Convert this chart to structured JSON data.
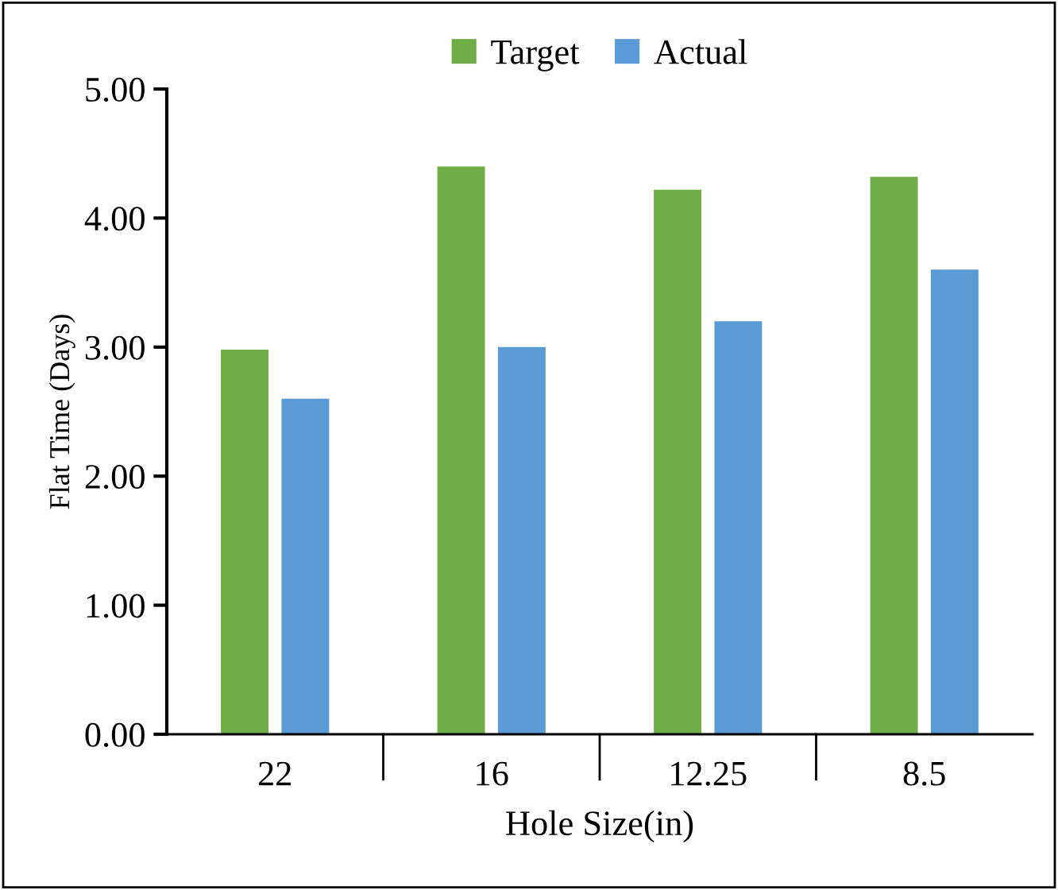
{
  "chart_data": {
    "type": "bar",
    "xlabel": "Hole Size(in)",
    "ylabel": "Flat Time (Days)",
    "categories": [
      "22",
      "16",
      "12.25",
      "8.5"
    ],
    "series": [
      {
        "name": "Target",
        "color": "#70ad47",
        "values": [
          2.98,
          4.4,
          4.22,
          4.32
        ]
      },
      {
        "name": "Actual",
        "color": "#5b9bd5",
        "values": [
          2.6,
          3.0,
          3.2,
          3.6
        ]
      }
    ],
    "ylim": [
      0,
      5
    ],
    "yticks": [
      {
        "value": 0,
        "label": "0.00"
      },
      {
        "value": 1,
        "label": "1.00"
      },
      {
        "value": 2,
        "label": "2.00"
      },
      {
        "value": 3,
        "label": "3.00"
      },
      {
        "value": 4,
        "label": "4.00"
      },
      {
        "value": 5,
        "label": "5.00"
      }
    ],
    "grid": false,
    "legend": "top"
  }
}
